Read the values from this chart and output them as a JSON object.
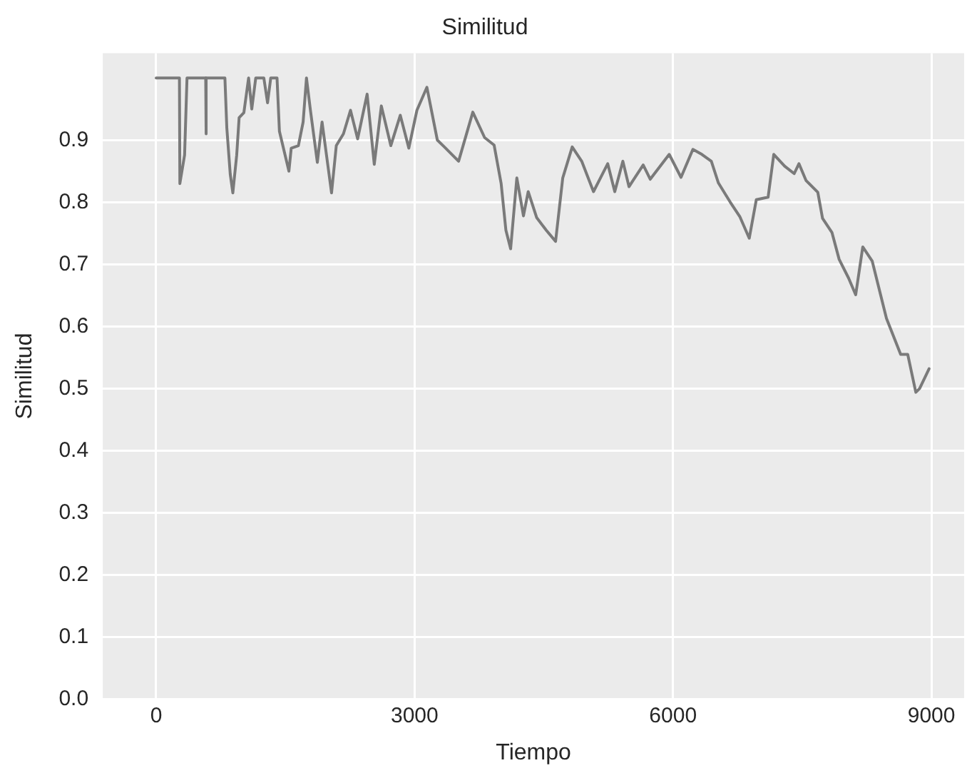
{
  "chart_data": {
    "type": "line",
    "title": "Similitud",
    "xlabel": "Tiempo",
    "ylabel": "Similitud",
    "xlim": [
      -620,
      9380
    ],
    "xticks": [
      0,
      3000,
      6000,
      9000
    ],
    "ylim": [
      0,
      1.04
    ],
    "yticks": [
      {
        "value": 0,
        "label": "0.0"
      },
      0.1,
      0.2,
      0.3,
      0.4,
      0.5,
      0.6,
      0.7,
      0.8,
      0.9
    ],
    "grid": true,
    "legend": false,
    "marker": "none",
    "line_style": "solid",
    "series": [
      {
        "color": "#7a7a7a",
        "x": [
          0,
          270,
          275,
          330,
          358,
          575,
          578,
          582,
          798,
          820,
          860,
          890,
          935,
          963,
          1018,
          1073,
          1110,
          1156,
          1250,
          1293,
          1330,
          1403,
          1431,
          1541,
          1568,
          1651,
          1706,
          1745,
          1789,
          1871,
          1926,
          2036,
          2091,
          2174,
          2256,
          2339,
          2449,
          2532,
          2614,
          2724,
          2834,
          2933,
          3027,
          3143,
          3264,
          3346,
          3511,
          3676,
          3813,
          3923,
          4005,
          4060,
          4115,
          4187,
          4264,
          4319,
          4418,
          4528,
          4637,
          4720,
          4830,
          4940,
          5077,
          5242,
          5324,
          5418,
          5489,
          5654,
          5736,
          5956,
          6093,
          6231,
          6335,
          6445,
          6527,
          6665,
          6775,
          6885,
          6967,
          7104,
          7170,
          7297,
          7407,
          7462,
          7544,
          7681,
          7736,
          7846,
          7929,
          8038,
          8121,
          8203,
          8313,
          8478,
          8643,
          8725,
          8819,
          8863,
          8973
        ],
        "values": [
          1.0,
          1.0,
          0.83,
          0.876,
          1.0,
          1.0,
          0.91,
          1.0,
          1.0,
          0.92,
          0.845,
          0.815,
          0.876,
          0.936,
          0.944,
          1.0,
          0.95,
          1.0,
          1.0,
          0.96,
          1.0,
          1.0,
          0.914,
          0.85,
          0.887,
          0.891,
          0.929,
          1.0,
          0.95,
          0.864,
          0.929,
          0.815,
          0.891,
          0.91,
          0.948,
          0.902,
          0.974,
          0.861,
          0.955,
          0.891,
          0.94,
          0.887,
          0.948,
          0.985,
          0.9,
          0.889,
          0.866,
          0.945,
          0.904,
          0.892,
          0.83,
          0.755,
          0.725,
          0.839,
          0.778,
          0.817,
          0.775,
          0.755,
          0.737,
          0.839,
          0.889,
          0.866,
          0.817,
          0.862,
          0.817,
          0.866,
          0.825,
          0.86,
          0.837,
          0.877,
          0.84,
          0.885,
          0.877,
          0.866,
          0.831,
          0.8,
          0.777,
          0.742,
          0.804,
          0.808,
          0.877,
          0.858,
          0.846,
          0.862,
          0.835,
          0.816,
          0.774,
          0.751,
          0.708,
          0.678,
          0.651,
          0.728,
          0.705,
          0.613,
          0.555,
          0.555,
          0.494,
          0.5,
          0.532
        ]
      }
    ]
  }
}
